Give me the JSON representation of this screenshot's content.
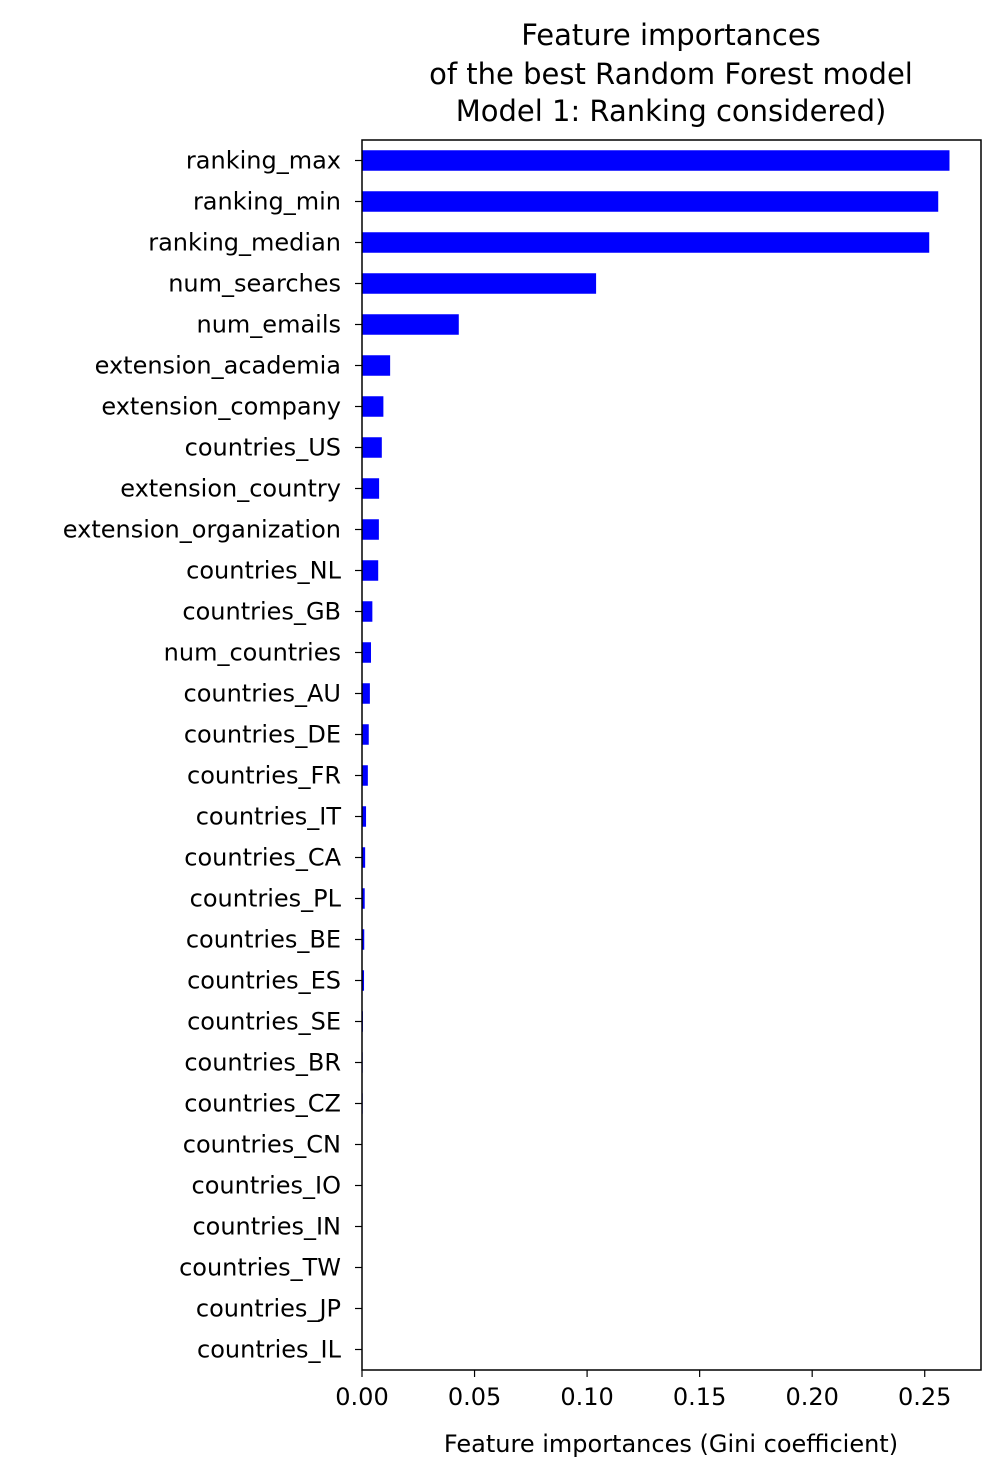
{
  "chart_data": {
    "type": "bar",
    "orientation": "horizontal",
    "title_lines": [
      "Feature importances",
      "of the best Random Forest model",
      "Model 1: Ranking considered)"
    ],
    "xlabel": "Feature importances (Gini coefficient)",
    "ylabel": "",
    "xlim": [
      0,
      0.275
    ],
    "xticks": [
      "0.00",
      "0.05",
      "0.10",
      "0.15",
      "0.20",
      "0.25"
    ],
    "xtick_values": [
      0,
      0.05,
      0.1,
      0.15,
      0.2,
      0.25
    ],
    "grid": false,
    "legend": "none",
    "bar_color": "#0000ff",
    "categories": [
      "ranking_max",
      "ranking_min",
      "ranking_median",
      "num_searches",
      "num_emails",
      "extension_academia",
      "extension_company",
      "countries_US",
      "extension_country",
      "extension_organization",
      "countries_NL",
      "countries_GB",
      "num_countries",
      "countries_AU",
      "countries_DE",
      "countries_FR",
      "countries_IT",
      "countries_CA",
      "countries_PL",
      "countries_BE",
      "countries_ES",
      "countries_SE",
      "countries_BR",
      "countries_CZ",
      "countries_CN",
      "countries_IO",
      "countries_IN",
      "countries_TW",
      "countries_JP",
      "countries_IL"
    ],
    "values": [
      0.261,
      0.256,
      0.252,
      0.104,
      0.043,
      0.0125,
      0.0095,
      0.0088,
      0.0076,
      0.0075,
      0.0072,
      0.0046,
      0.004,
      0.0035,
      0.003,
      0.0026,
      0.0018,
      0.0014,
      0.0012,
      0.001,
      0.0009,
      0.0004,
      0.0003,
      0.0003,
      0.0002,
      0.0002,
      0.0001,
      0.0001,
      0.0001,
      0.0001
    ]
  }
}
